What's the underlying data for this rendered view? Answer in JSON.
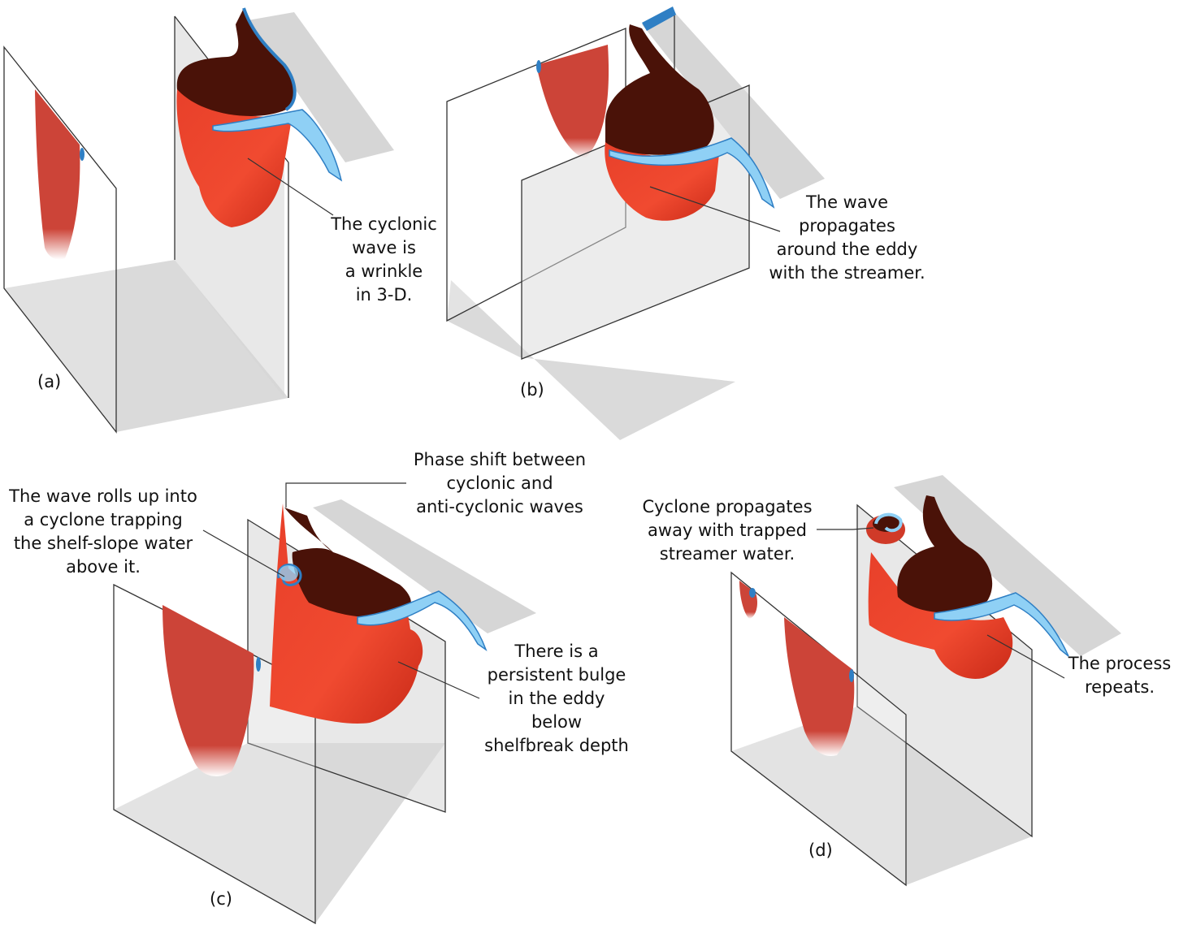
{
  "colors": {
    "eddy_red": "#e8402a",
    "eddy_dark_top": "#4a1208",
    "slice_red": "#cc4438",
    "streamer_blue": "#8fd0f5",
    "streamer_dark_blue": "#2f7fc4",
    "plane_gray": "#d9d9d9",
    "outline": "#333333"
  },
  "panels": {
    "a": {
      "letter": "(a)",
      "annotation": [
        "The cyclonic",
        "wave is",
        "a wrinkle",
        "in 3-D."
      ]
    },
    "b": {
      "letter": "(b)",
      "annotation": [
        "The wave",
        "propagates",
        "around the eddy",
        "with the streamer."
      ]
    },
    "c": {
      "letter": "(c)",
      "annotation_left": [
        "The wave rolls up into",
        "a cyclone trapping",
        "the shelf-slope water",
        "above it."
      ],
      "annotation_top": [
        "Phase shift between",
        "cyclonic and",
        "anti-cyclonic waves"
      ],
      "annotation_right": [
        "There is a",
        "persistent bulge",
        "in the eddy",
        "below",
        "shelfbreak depth"
      ]
    },
    "d": {
      "letter": "(d)",
      "annotation_left": [
        "Cyclone propagates",
        "away with trapped",
        "streamer water."
      ],
      "annotation_right": [
        "The process",
        "repeats."
      ]
    }
  }
}
